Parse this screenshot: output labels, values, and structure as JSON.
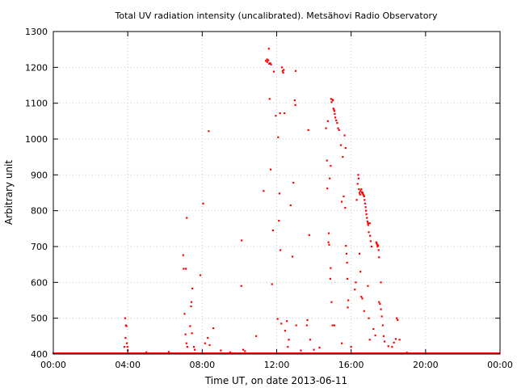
{
  "chart_data": {
    "type": "scatter",
    "title": "Total UV radiation intensity (uncalibrated). Metsähovi Radio Observatory",
    "xlabel": "Time UT, on date 2013-06-11",
    "ylabel": "Arbitrary unit",
    "xlim": [
      0,
      24
    ],
    "ylim": [
      400,
      1300
    ],
    "x_ticks": [
      {
        "value": 0,
        "label": "00:00"
      },
      {
        "value": 4,
        "label": "04:00"
      },
      {
        "value": 8,
        "label": "08:00"
      },
      {
        "value": 12,
        "label": "12:00"
      },
      {
        "value": 16,
        "label": "16:00"
      },
      {
        "value": 20,
        "label": "20:00"
      },
      {
        "value": 24,
        "label": "00:00"
      }
    ],
    "y_ticks": [
      {
        "value": 400,
        "label": "400"
      },
      {
        "value": 500,
        "label": "500"
      },
      {
        "value": 600,
        "label": "600"
      },
      {
        "value": 700,
        "label": "700"
      },
      {
        "value": 800,
        "label": "800"
      },
      {
        "value": 900,
        "label": "900"
      },
      {
        "value": 1000,
        "label": "1000"
      },
      {
        "value": 1100,
        "label": "1100"
      },
      {
        "value": 1200,
        "label": "1200"
      },
      {
        "value": 1300,
        "label": "1300"
      }
    ],
    "grid": true,
    "marker_color": "#ff0000",
    "series": [
      {
        "points": [
          [
            3.86,
            500
          ],
          [
            3.9,
            480
          ],
          [
            3.93,
            478
          ],
          [
            3.88,
            445
          ],
          [
            3.95,
            430
          ],
          [
            3.98,
            420
          ],
          [
            4.0,
            410
          ],
          [
            3.82,
            420
          ],
          [
            6.98,
            676
          ],
          [
            7.0,
            638
          ],
          [
            7.12,
            638
          ],
          [
            7.17,
            780
          ],
          [
            7.05,
            512
          ],
          [
            7.1,
            455
          ],
          [
            7.15,
            430
          ],
          [
            7.2,
            420
          ],
          [
            7.47,
            583
          ],
          [
            7.42,
            545
          ],
          [
            7.4,
            533
          ],
          [
            7.35,
            478
          ],
          [
            7.45,
            458
          ],
          [
            7.55,
            420
          ],
          [
            7.6,
            412
          ],
          [
            7.9,
            620
          ],
          [
            8.05,
            820
          ],
          [
            8.35,
            1022
          ],
          [
            8.15,
            430
          ],
          [
            8.3,
            445
          ],
          [
            8.6,
            472
          ],
          [
            8.4,
            425
          ],
          [
            10.12,
            717
          ],
          [
            10.1,
            590
          ],
          [
            10.2,
            412
          ],
          [
            10.3,
            408
          ],
          [
            10.9,
            450
          ],
          [
            11.3,
            855
          ],
          [
            11.42,
            1218
          ],
          [
            11.48,
            1222
          ],
          [
            11.5,
            1215
          ],
          [
            11.55,
            1220
          ],
          [
            11.6,
            1210
          ],
          [
            11.65,
            1212
          ],
          [
            11.7,
            1208
          ],
          [
            11.58,
            1252
          ],
          [
            11.62,
            1112
          ],
          [
            11.68,
            915
          ],
          [
            11.75,
            595
          ],
          [
            11.85,
            1188
          ],
          [
            11.8,
            745
          ],
          [
            11.95,
            1065
          ],
          [
            12.05,
            498
          ],
          [
            12.08,
            1005
          ],
          [
            12.15,
            848
          ],
          [
            12.18,
            1072
          ],
          [
            12.12,
            772
          ],
          [
            12.2,
            690
          ],
          [
            12.25,
            485
          ],
          [
            12.28,
            1200
          ],
          [
            12.32,
            1190
          ],
          [
            12.35,
            1185
          ],
          [
            12.38,
            1193
          ],
          [
            12.42,
            1072
          ],
          [
            12.45,
            465
          ],
          [
            12.55,
            492
          ],
          [
            12.75,
            815
          ],
          [
            12.85,
            672
          ],
          [
            12.9,
            878
          ],
          [
            12.97,
            1108
          ],
          [
            13.0,
            1095
          ],
          [
            13.02,
            1190
          ],
          [
            13.05,
            480
          ],
          [
            12.65,
            440
          ],
          [
            12.6,
            420
          ],
          [
            13.7,
            1025
          ],
          [
            13.75,
            732
          ],
          [
            13.65,
            495
          ],
          [
            13.62,
            480
          ],
          [
            13.8,
            440
          ],
          [
            14.65,
            1030
          ],
          [
            14.7,
            940
          ],
          [
            14.72,
            862
          ],
          [
            14.75,
            1050
          ],
          [
            14.78,
            712
          ],
          [
            14.8,
            737
          ],
          [
            14.82,
            705
          ],
          [
            14.85,
            890
          ],
          [
            14.9,
            925
          ],
          [
            14.92,
            1112
          ],
          [
            14.95,
            1103
          ],
          [
            15.0,
            1110
          ],
          [
            15.02,
            1108
          ],
          [
            15.05,
            1085
          ],
          [
            15.08,
            1082
          ],
          [
            15.1,
            1078
          ],
          [
            15.12,
            1070
          ],
          [
            15.15,
            1060
          ],
          [
            15.2,
            1052
          ],
          [
            15.25,
            1045
          ],
          [
            15.3,
            1030
          ],
          [
            15.35,
            1025
          ],
          [
            14.9,
            640
          ],
          [
            14.88,
            610
          ],
          [
            14.95,
            545
          ],
          [
            15.0,
            480
          ],
          [
            15.1,
            480
          ],
          [
            15.45,
            983
          ],
          [
            15.55,
            950
          ],
          [
            15.65,
            1010
          ],
          [
            15.7,
            975
          ],
          [
            15.5,
            825
          ],
          [
            15.6,
            840
          ],
          [
            15.68,
            808
          ],
          [
            15.72,
            702
          ],
          [
            15.75,
            680
          ],
          [
            15.78,
            655
          ],
          [
            15.8,
            610
          ],
          [
            15.85,
            550
          ],
          [
            15.82,
            530
          ],
          [
            16.2,
            580
          ],
          [
            16.25,
            600
          ],
          [
            16.3,
            830
          ],
          [
            16.35,
            875
          ],
          [
            16.38,
            900
          ],
          [
            16.4,
            890
          ],
          [
            16.42,
            860
          ],
          [
            16.45,
            850
          ],
          [
            16.48,
            845
          ],
          [
            16.5,
            855
          ],
          [
            16.55,
            860
          ],
          [
            16.58,
            852
          ],
          [
            16.6,
            848
          ],
          [
            16.62,
            850
          ],
          [
            16.65,
            845
          ],
          [
            16.68,
            842
          ],
          [
            16.7,
            840
          ],
          [
            16.72,
            830
          ],
          [
            16.75,
            820
          ],
          [
            16.78,
            810
          ],
          [
            16.8,
            800
          ],
          [
            16.82,
            790
          ],
          [
            16.85,
            780
          ],
          [
            16.88,
            770
          ],
          [
            16.9,
            765
          ],
          [
            16.92,
            760
          ],
          [
            16.95,
            740
          ],
          [
            17.0,
            765
          ],
          [
            17.02,
            730
          ],
          [
            17.05,
            715
          ],
          [
            17.1,
            700
          ],
          [
            17.35,
            712
          ],
          [
            17.38,
            708
          ],
          [
            17.4,
            705
          ],
          [
            17.42,
            700
          ],
          [
            17.45,
            703
          ],
          [
            17.48,
            690
          ],
          [
            17.5,
            670
          ],
          [
            16.45,
            680
          ],
          [
            16.5,
            630
          ],
          [
            16.55,
            560
          ],
          [
            16.6,
            555
          ],
          [
            16.7,
            520
          ],
          [
            16.9,
            590
          ],
          [
            16.95,
            500
          ],
          [
            17.2,
            470
          ],
          [
            17.3,
            452
          ],
          [
            17.5,
            545
          ],
          [
            17.55,
            540
          ],
          [
            17.6,
            525
          ],
          [
            17.65,
            505
          ],
          [
            17.7,
            480
          ],
          [
            17.75,
            450
          ],
          [
            17.6,
            600
          ],
          [
            18.45,
            500
          ],
          [
            18.5,
            495
          ],
          [
            18.4,
            442
          ],
          [
            18.3,
            432
          ],
          [
            18.2,
            420
          ],
          [
            18.6,
            440
          ],
          [
            5.0,
            405
          ],
          [
            5.5,
            402
          ],
          [
            6.2,
            406
          ],
          [
            9.0,
            410
          ],
          [
            9.5,
            405
          ],
          [
            13.3,
            410
          ],
          [
            14.0,
            412
          ],
          [
            14.3,
            418
          ],
          [
            15.5,
            430
          ],
          [
            16.0,
            420
          ],
          [
            17.0,
            440
          ],
          [
            17.8,
            435
          ],
          [
            18.0,
            422
          ],
          [
            19.0,
            404
          ]
        ]
      }
    ]
  }
}
